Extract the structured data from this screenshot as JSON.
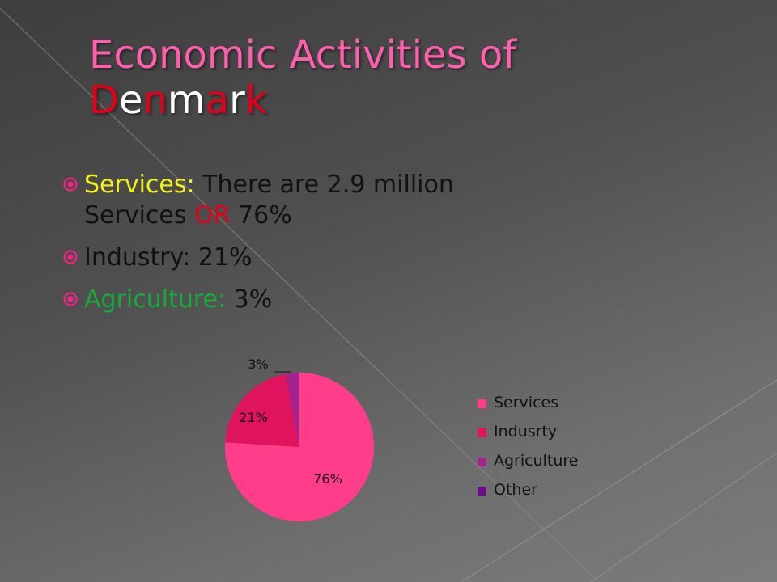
{
  "slide": {
    "title_line1": "Economic Activities of",
    "title_line2_letters": [
      {
        "ch": "D",
        "color": "#e3001b"
      },
      {
        "ch": "e",
        "color": "#ffffff"
      },
      {
        "ch": "n",
        "color": "#e3001b"
      },
      {
        "ch": "m",
        "color": "#ffffff"
      },
      {
        "ch": "a",
        "color": "#e3001b"
      },
      {
        "ch": "r",
        "color": "#ffffff"
      },
      {
        "ch": "k",
        "color": "#e3001b"
      }
    ]
  },
  "bullets": [
    {
      "icon": "circled-dot-icon",
      "runs": [
        {
          "text": "Services:",
          "color": "#f2f21a"
        },
        {
          "text": " There are 2.9 million Services ",
          "color": "#111111"
        },
        {
          "text": "OR",
          "color": "#e3001b"
        },
        {
          "text": " 76%",
          "color": "#111111"
        }
      ]
    },
    {
      "icon": "circled-dot-icon",
      "runs": [
        {
          "text": " Industry:",
          "color": "#111111"
        },
        {
          "text": " 21%",
          "color": "#111111"
        }
      ]
    },
    {
      "icon": "circled-dot-icon",
      "runs": [
        {
          "text": "Agriculture:",
          "color": "#17a93a"
        },
        {
          "text": " 3%",
          "color": "#111111"
        }
      ]
    }
  ],
  "colors": {
    "accent_pink": "#ff5fae",
    "bullet_icon": "#ff1f8a"
  },
  "chart_data": {
    "type": "pie",
    "categories": [
      "Services",
      "Indusrty",
      "Agriculture",
      "Other"
    ],
    "values": [
      76,
      21,
      3,
      0
    ],
    "data_labels": [
      "76%",
      "21%",
      "3%",
      ""
    ],
    "colors": [
      "#ff3d8b",
      "#e0135e",
      "#a3228c",
      "#6a0d8a"
    ],
    "legend_position": "right"
  }
}
